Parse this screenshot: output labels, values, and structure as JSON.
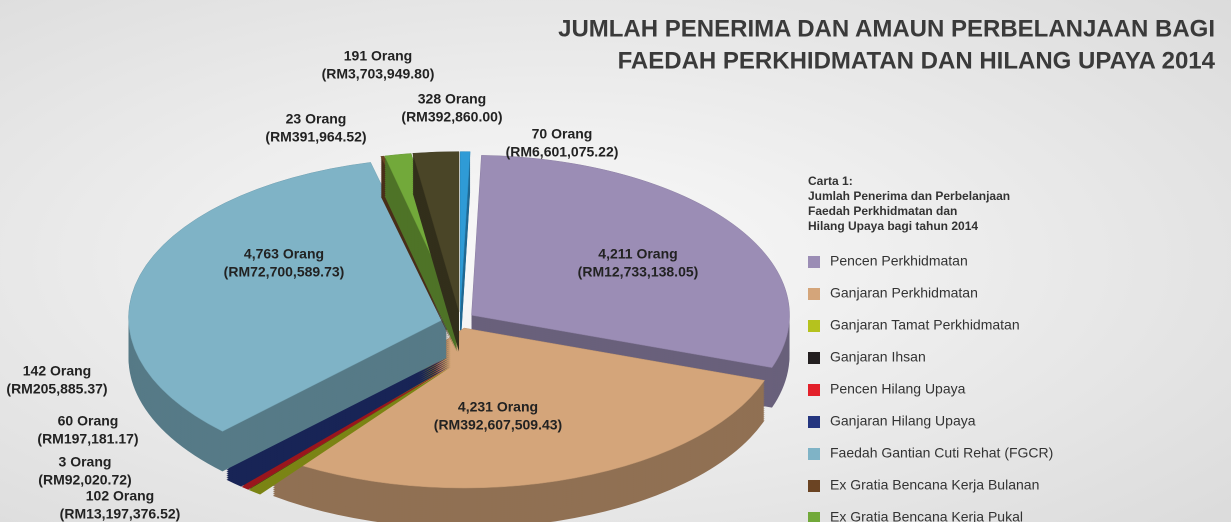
{
  "chart_data": {
    "type": "pie",
    "title": [
      "JUMLAH PENERIMA DAN AMAUN PERBELANJAAN BAGI",
      "FAEDAH PERKHIDMATAN DAN HILANG UPAYA 2014"
    ],
    "legend_title": [
      "Carta 1:",
      "Jumlah Penerima dan Perbelanjaan",
      "Faedah Perkhidmatan dan",
      "Hilang Upaya bagi tahun 2014"
    ],
    "categories": [
      null,
      "Pencen Perkhidmatan",
      "Ganjaran Perkhidmatan",
      "Ganjaran Tamat Perkhidmatan",
      "Ganjaran Ihsan",
      "Pencen Hilang Upaya",
      "Ganjaran Hilang Upaya",
      "Faedah Gantian Cuti Rehat (FGCR)",
      "Ex Gratia Bencana Kerja Bulanan",
      "Ex Gratia Bencana Kerja Pukal",
      null
    ],
    "values": [
      70,
      4211,
      4231,
      102,
      3,
      60,
      142,
      4763,
      23,
      191,
      328
    ],
    "value_labels": [
      "70 Orang",
      "4,211 Orang",
      "4,231 Orang",
      "102 Orang",
      "3 Orang",
      "60 Orang",
      "142 Orang",
      "4,763 Orang",
      "23 Orang",
      "191 Orang",
      "328 Orang"
    ],
    "amount_labels": [
      "(RM6,601,075.22)",
      "(RM12,733,138.05)",
      "(RM392,607,509.43)",
      "(RM13,197,376.52)",
      "(RM92,020.72)",
      "(RM197,181.17)",
      "(RM205,885.37)",
      "(RM72,700,589.73)",
      "(RM391,964.52)",
      "(RM3,703,949.80)",
      "(RM392,860.00)"
    ],
    "colors": [
      "#2f9bd6",
      "#9b8db5",
      "#d4a57a",
      "#b5c21e",
      "#231f20",
      "#e3202a",
      "#24357f",
      "#7fb3c6",
      "#6b4423",
      "#72a93a",
      "#4a4527"
    ],
    "legend": "right"
  }
}
